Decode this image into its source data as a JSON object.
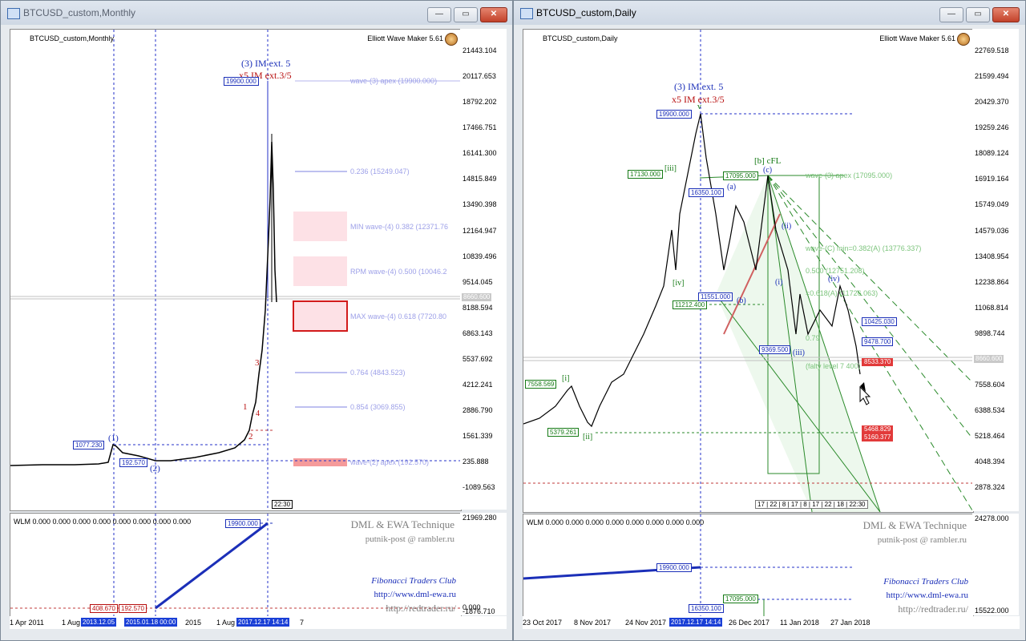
{
  "left": {
    "window_title": "BTCUSD_custom,Monthly",
    "symbol_label": "BTCUSD_custom,Monthly",
    "ewm_label": "Elliott Wave Maker 5.61",
    "price_scale": [
      "21443.104",
      "20117.653",
      "18792.202",
      "17466.751",
      "16141.300",
      "14815.849",
      "13490.398",
      "12164.947",
      "10839.496",
      "9514.045",
      "8188.594",
      "6863.143",
      "5537.692",
      "4212.241",
      "2886.790",
      "1561.339",
      "235.888",
      "-1089.563"
    ],
    "current_price": "8660.600",
    "wave_title_blue": "(3) IM ext. 5",
    "wave_title_red": "x5 IM ext.3/5",
    "apex_box": "19900.000",
    "box_1077": "1077.230",
    "box_192": "192.570",
    "lbl_1": "(1)",
    "lbl_2": "(2)",
    "minor_1": "1",
    "minor_2": "2",
    "minor_3": "3",
    "minor_4": "4",
    "fib_labels": {
      "apex3": "wave-(3) apex (19900.000)",
      "f0236": "0.236 (15249.047)",
      "min4": "MIN wave-(4) 0.382 (12371.76",
      "rpm4": "RPM wave-(4) 0.500 (10046.2",
      "max4": "MAX wave-(4) 0.618 (7720.80",
      "f0764": "0.764 (4843.523)",
      "f0854": "0.854 (3069.855)",
      "apex2": "wave-(2) apex (192.570)"
    },
    "bar_time": "22:30",
    "indicator": {
      "title": "WLM 0.000 0.000 0.000 0.000 0.000 0.000 0.000 0.000",
      "scale_top": "21969.280",
      "scale_mid": "0.000",
      "scale_bot": "-1876.710",
      "box_top": "19900.000",
      "box_408": "408.670",
      "box_192": "192.570"
    },
    "watermark": {
      "l1": "DML & EWA Technique",
      "l2": "putnik-post @ rambler.ru",
      "l3": "Fibonacci   Traders   Club",
      "l4": "http://www.dml-ewa.ru",
      "l5": "http://redtrader.ru/"
    },
    "time_axis": {
      "t1": "1 Apr 2011",
      "t2": "1 Aug",
      "t3": "2013.12.05",
      "t4": "2015.01.18 00:00",
      "t5": "2015",
      "t6": "1 Aug",
      "t7": "2017.12.17 14:14",
      "t8": "7"
    }
  },
  "right": {
    "window_title": "BTCUSD_custom,Daily",
    "symbol_label": "BTCUSD_custom,Daily",
    "ewm_label": "Elliott Wave Maker 5.61",
    "price_scale": [
      "22769.518",
      "21599.494",
      "20429.370",
      "19259.246",
      "18089.124",
      "16919.164",
      "15749.049",
      "14579.036",
      "13408.954",
      "12238.864",
      "11068.814",
      "9898.744",
      "8660.600",
      "7558.604",
      "6388.534",
      "5218.464",
      "4048.394",
      "2878.324"
    ],
    "current_price": "8660.600",
    "wave_title_blue": "(3) IM ext. 5",
    "wave_title_red": "x5 IM ext.3/5",
    "box_19900": "19900.000",
    "box_17130": "17130.000",
    "box_17095": "17095.000",
    "box_16350": "16350.100",
    "box_11212": "11212.400",
    "box_11551": "11551.000",
    "box_9369": "9369.500",
    "box_7558": "7558.569",
    "box_5379": "5379.261",
    "box_10425": "10425.030",
    "box_9478": "9478.700",
    "box_8533": "8533.370",
    "box_5468": "5468.829",
    "box_5160": "5160.377",
    "lbl_iii": "[iii]",
    "lbl_iv": "[iv]",
    "lbl_i": "[i]",
    "lbl_ii": "[ii]",
    "lbl_bcfl": "[b] cFL",
    "lbl_c": "(c)",
    "lbl_a": "(a)",
    "lbl_b": "(b)",
    "lbl_iv_small": "(iv)",
    "lbl_iii_small": "(iii)",
    "lbl_i_small": "(i)",
    "lbl_ii_small": "(ii)",
    "lbl_v": "v",
    "fib": {
      "apex3": "wave-(3) apex (17095.000)",
      "c0382": "wave-(C) min=0.382(A) (13776.337)",
      "c0500": "0.500 (12751.208)",
      "c0618": "=0.618(A) (11726.063)",
      "fl": "(falty level 7 400)",
      "f79": "0.79"
    },
    "bar_counts": "17 | 22 | 8 | 17 | 8 | 17 | 22 | 18 | 22:30",
    "indicator": {
      "title": "WLM 0.000 0.000 0.000 0.000 0.000 0.000 0.000 0.000",
      "scale_top": "24278.000",
      "scale_bot": "15522.000",
      "box_19900": "19900.000",
      "box_17095": "17095.000",
      "box_16350": "16350.100"
    },
    "watermark": {
      "l1": "DML & EWA Technique",
      "l2": "putnik-post @ rambler.ru",
      "l3": "Fibonacci   Traders   Club",
      "l4": "http://www.dml-ewa.ru",
      "l5": "http://redtrader.ru/"
    },
    "time_axis": {
      "t1": "23 Oct 2017",
      "t2": "8 Nov 2017",
      "t3": "24 Nov 2017",
      "t4": "2017.12.17 14:14",
      "t5": "26 Dec 2017",
      "t6": "11 Jan 2018",
      "t7": "27 Jan 2018"
    }
  },
  "controls": {
    "minimize": "—",
    "restore": "▭",
    "close": "✕"
  },
  "colors": {
    "blue": "#1b2fb8",
    "red": "#b80f0f",
    "green": "#157a15",
    "pink": "#fde1e6",
    "fib": "#9da0e8"
  }
}
